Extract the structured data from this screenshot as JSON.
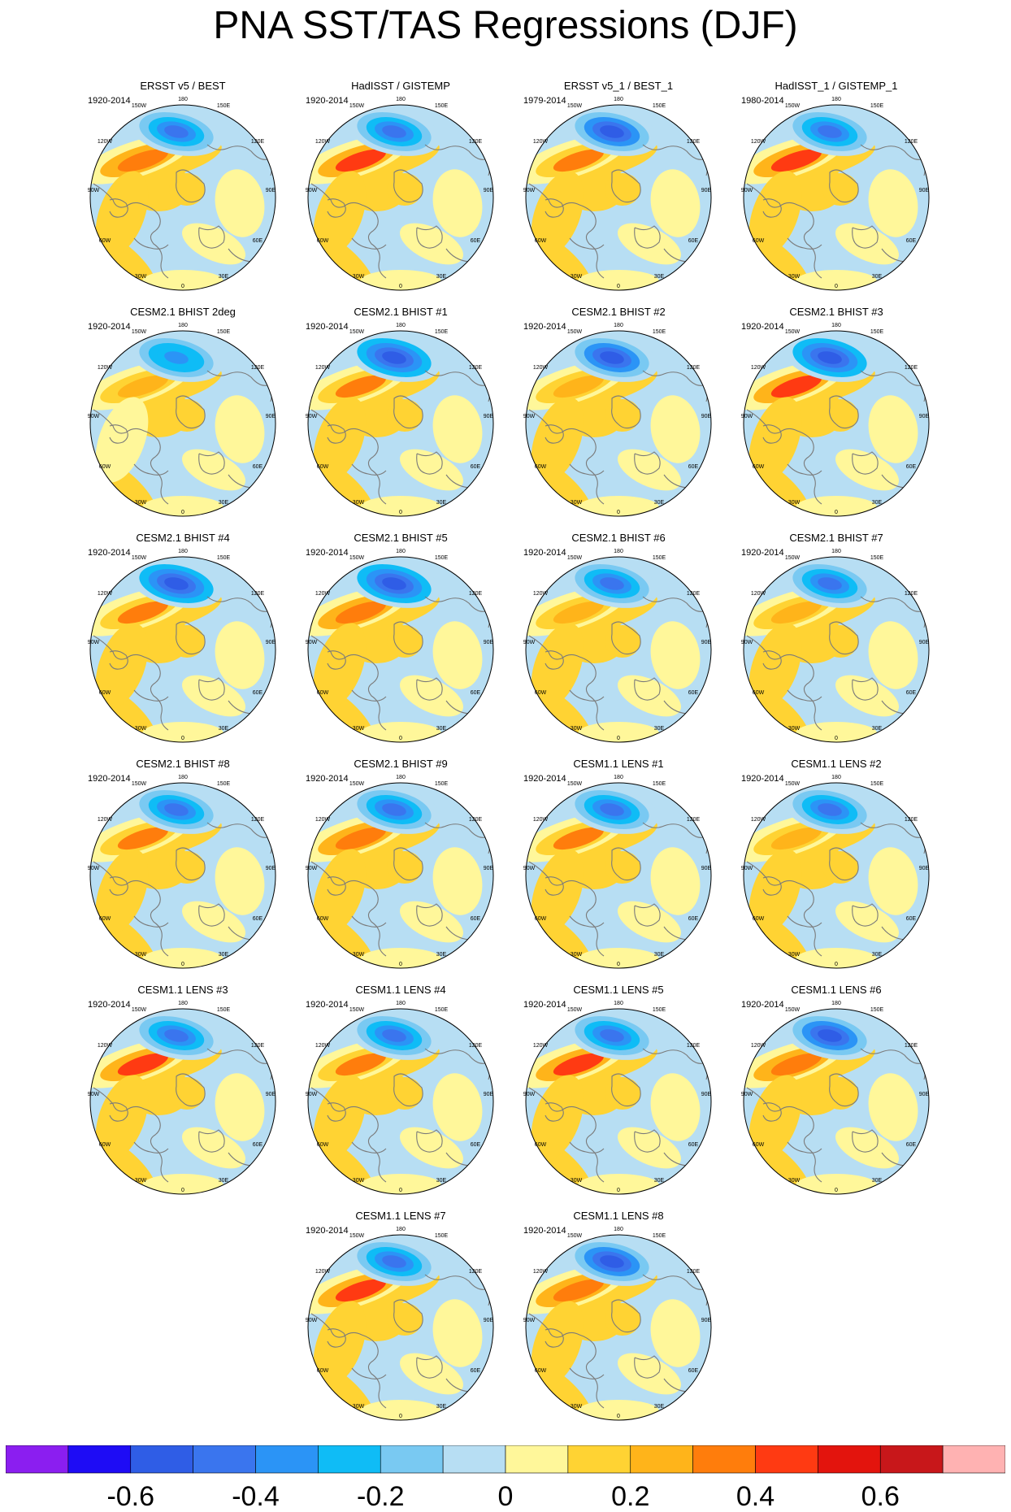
{
  "title": "PNA SST/TAS Regressions (DJF)",
  "chart_data": {
    "type": "heatmap",
    "projection": "north-polar-stereographic",
    "season": "DJF",
    "longitude_labels": [
      "180",
      "150E",
      "120E",
      "90E",
      "60E",
      "30E",
      "0",
      "30W",
      "60W",
      "90W",
      "120W",
      "150W"
    ],
    "colorbar": {
      "colors": [
        "#8b1ef0",
        "#1e0cf5",
        "#2f5de6",
        "#3a75ee",
        "#2b94f6",
        "#0fbcf6",
        "#79c9f2",
        "#b7def3",
        "#fff79a",
        "#ffd333",
        "#ffb41a",
        "#ff7d0c",
        "#ff3a12",
        "#e3140d",
        "#c8171a",
        "#ffb2b2"
      ],
      "tick_labels": [
        "-0.6",
        "-0.4",
        "-0.2",
        "0",
        "0.2",
        "0.4",
        "0.6"
      ],
      "tick_values": [
        -0.6,
        -0.4,
        -0.2,
        0,
        0.2,
        0.4,
        0.6
      ],
      "range": [
        -0.8,
        0.8
      ]
    },
    "panels": [
      {
        "title": "ERSST v5 / BEST",
        "period": "1920-2014",
        "pna_low": -0.5,
        "pna_high": 0.4
      },
      {
        "title": "HadISST / GISTEMP",
        "period": "1920-2014",
        "pna_low": -0.45,
        "pna_high": 0.45
      },
      {
        "title": "ERSST v5_1 / BEST_1",
        "period": "1979-2014",
        "pna_low": -0.55,
        "pna_high": 0.35
      },
      {
        "title": "HadISST_1 / GISTEMP_1",
        "period": "1980-2014",
        "pna_low": -0.45,
        "pna_high": 0.45
      },
      {
        "title": "CESM2.1 BHIST 2deg",
        "period": "1920-2014",
        "pna_low": -0.4,
        "pna_high": 0.25
      },
      {
        "title": "CESM2.1 BHIST #1",
        "period": "1920-2014",
        "pna_low": -0.6,
        "pna_high": 0.35
      },
      {
        "title": "CESM2.1 BHIST #2",
        "period": "1920-2014",
        "pna_low": -0.55,
        "pna_high": 0.3
      },
      {
        "title": "CESM2.1 BHIST #3",
        "period": "1920-2014",
        "pna_low": -0.6,
        "pna_high": 0.45
      },
      {
        "title": "CESM2.1 BHIST #4",
        "period": "1920-2014",
        "pna_low": -0.6,
        "pna_high": 0.35
      },
      {
        "title": "CESM2.1 BHIST #5",
        "period": "1920-2014",
        "pna_low": -0.6,
        "pna_high": 0.4
      },
      {
        "title": "CESM2.1 BHIST #6",
        "period": "1920-2014",
        "pna_low": -0.5,
        "pna_high": 0.3
      },
      {
        "title": "CESM2.1 BHIST #7",
        "period": "1920-2014",
        "pna_low": -0.5,
        "pna_high": 0.3
      },
      {
        "title": "CESM2.1 BHIST #8",
        "period": "1920-2014",
        "pna_low": -0.45,
        "pna_high": 0.35
      },
      {
        "title": "CESM2.1 BHIST #9",
        "period": "1920-2014",
        "pna_low": -0.45,
        "pna_high": 0.4
      },
      {
        "title": "CESM1.1 LENS #1",
        "period": "1920-2014",
        "pna_low": -0.5,
        "pna_high": 0.35
      },
      {
        "title": "CESM1.1 LENS #2",
        "period": "1920-2014",
        "pna_low": -0.5,
        "pna_high": 0.3
      },
      {
        "title": "CESM1.1 LENS #3",
        "period": "1920-2014",
        "pna_low": -0.5,
        "pna_high": 0.45
      },
      {
        "title": "CESM1.1 LENS #4",
        "period": "1920-2014",
        "pna_low": -0.45,
        "pna_high": 0.35
      },
      {
        "title": "CESM1.1 LENS #5",
        "period": "1920-2014",
        "pna_low": -0.5,
        "pna_high": 0.45
      },
      {
        "title": "CESM1.1 LENS #6",
        "period": "1920-2014",
        "pna_low": -0.55,
        "pna_high": 0.4
      },
      {
        "title": "CESM1.1 LENS #7",
        "period": "1920-2014",
        "pna_low": -0.45,
        "pna_high": 0.45
      },
      {
        "title": "CESM1.1 LENS #8",
        "period": "1920-2014",
        "pna_low": -0.55,
        "pna_high": 0.4
      }
    ]
  }
}
